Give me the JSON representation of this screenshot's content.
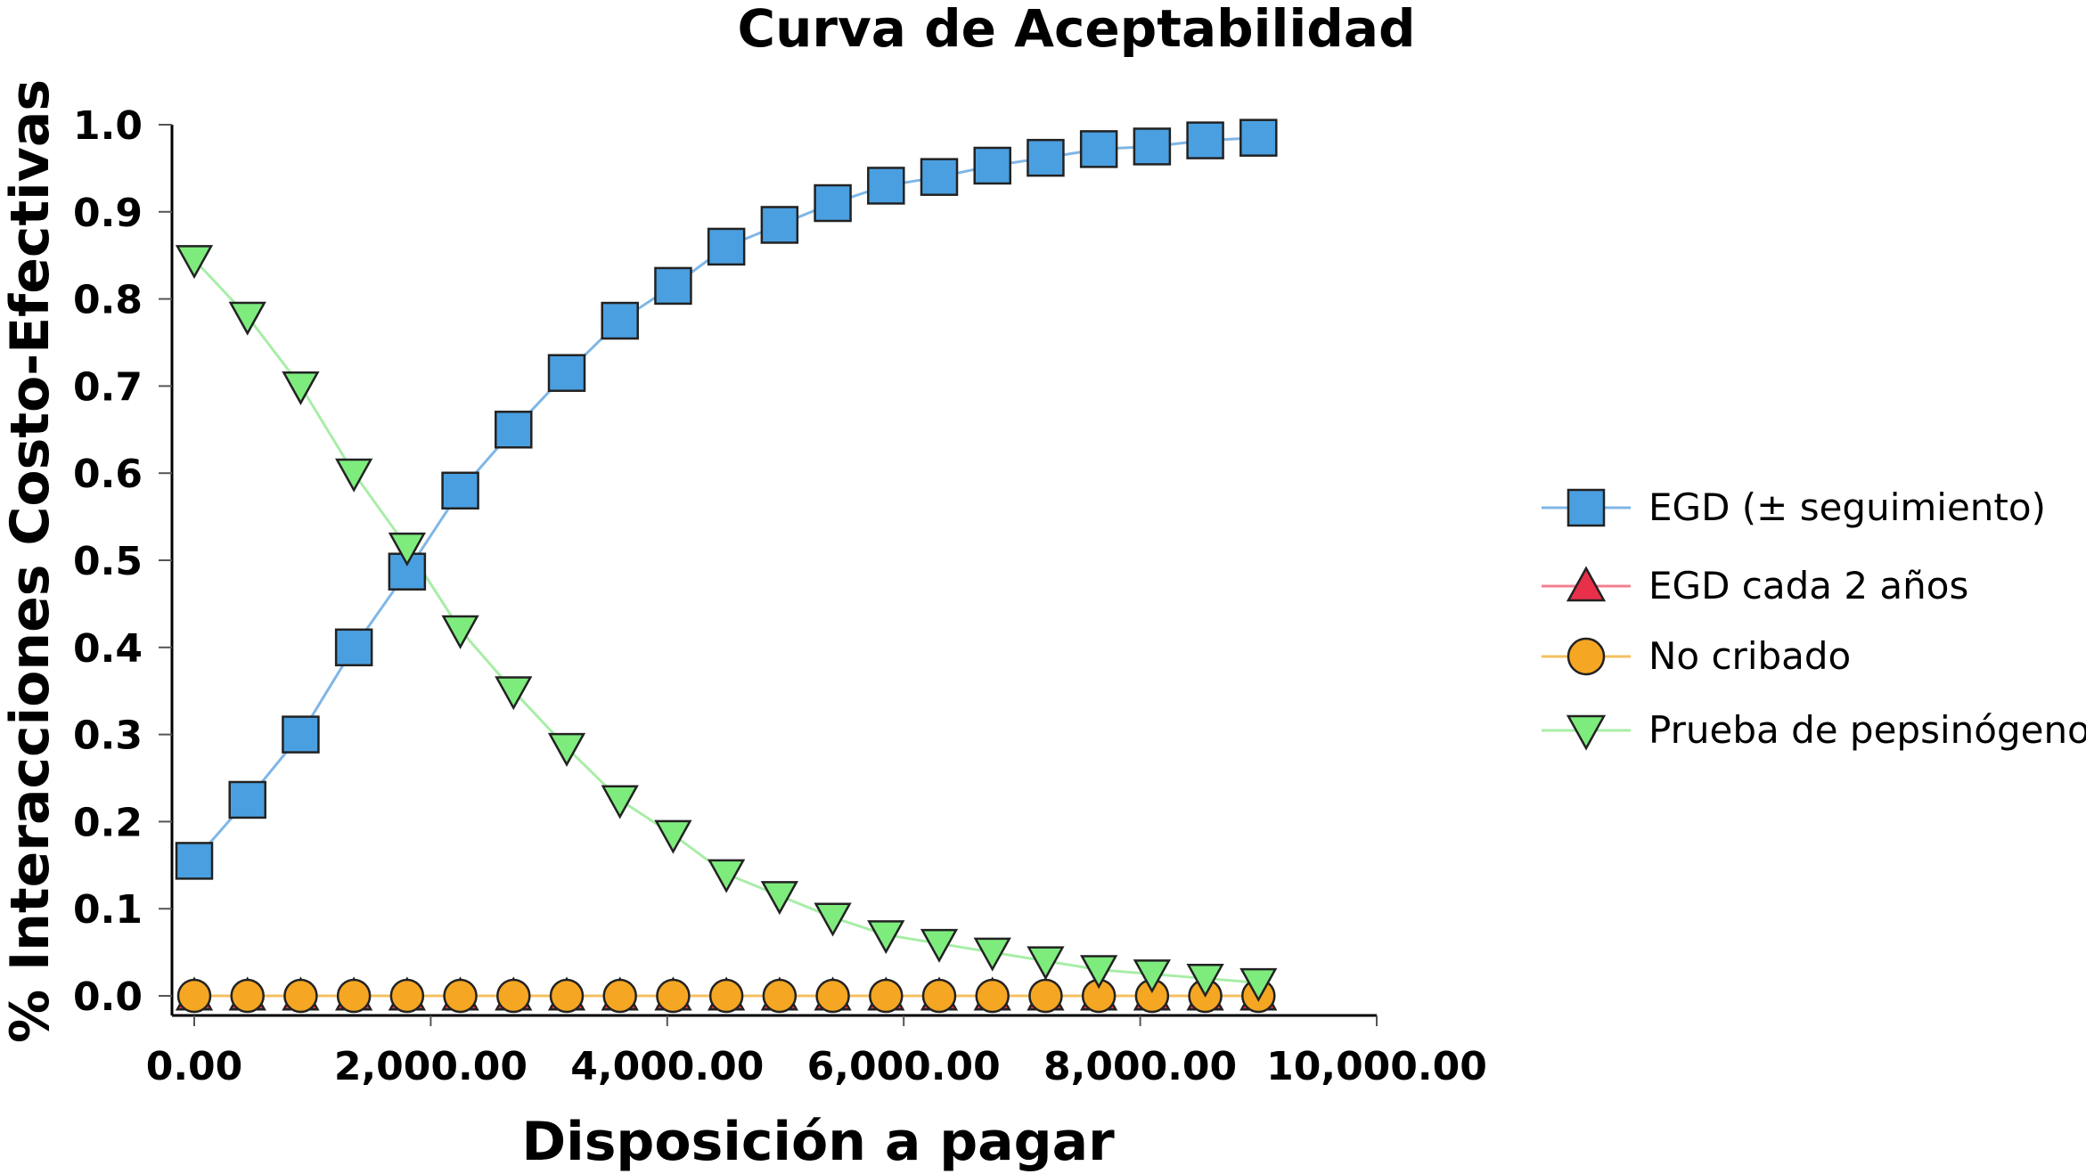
{
  "chart_data": {
    "type": "line",
    "title": "Curva de Aceptabilidad",
    "xlabel": "Disposición a pagar",
    "ylabel": "% Interacciones Costo-Efectivas",
    "xlim": [
      0,
      10000
    ],
    "ylim": [
      0,
      1.0
    ],
    "x_ticks": [
      0,
      2000,
      4000,
      6000,
      8000,
      10000
    ],
    "x_tick_labels": [
      "0.00",
      "2,000.00",
      "4,000.00",
      "6,000.00",
      "8,000.00",
      "10,000.00"
    ],
    "y_ticks": [
      0,
      0.1,
      0.2,
      0.3,
      0.4,
      0.5,
      0.6,
      0.7,
      0.8,
      0.9,
      1.0
    ],
    "y_tick_labels": [
      "0.0",
      "0.1",
      "0.2",
      "0.3",
      "0.4",
      "0.5",
      "0.6",
      "0.7",
      "0.8",
      "0.9",
      "1.0"
    ],
    "grid": false,
    "legend_position": "right",
    "x": [
      0,
      450,
      900,
      1350,
      1800,
      2250,
      2700,
      3150,
      3600,
      4050,
      4500,
      4950,
      5400,
      5850,
      6300,
      6750,
      7200,
      7650,
      8100,
      8550,
      9000
    ],
    "series": [
      {
        "name": "EGD (± seguimiento)",
        "marker": "square",
        "color": "#4a9fe0",
        "line_color": "#7fb6e6",
        "values": [
          0.155,
          0.225,
          0.3,
          0.4,
          0.487,
          0.58,
          0.65,
          0.715,
          0.775,
          0.815,
          0.86,
          0.885,
          0.91,
          0.93,
          0.94,
          0.953,
          0.962,
          0.972,
          0.975,
          0.982,
          0.985
        ]
      },
      {
        "name": "EGD cada 2 años",
        "marker": "triangle-up",
        "color": "#e8304a",
        "line_color": "#f08090",
        "values": [
          0,
          0,
          0,
          0,
          0,
          0,
          0,
          0,
          0,
          0,
          0,
          0,
          0,
          0,
          0,
          0,
          0,
          0,
          0,
          0,
          0
        ]
      },
      {
        "name": "No cribado",
        "marker": "circle",
        "color": "#f5a623",
        "line_color": "#f5c060",
        "values": [
          0,
          0,
          0,
          0,
          0,
          0,
          0,
          0,
          0,
          0,
          0,
          0,
          0,
          0,
          0,
          0,
          0,
          0,
          0,
          0,
          0
        ]
      },
      {
        "name": "Prueba de pepsinógeno",
        "marker": "triangle-down",
        "color": "#7dec7d",
        "line_color": "#a8eda8",
        "values": [
          0.845,
          0.78,
          0.7,
          0.6,
          0.515,
          0.42,
          0.35,
          0.285,
          0.225,
          0.185,
          0.14,
          0.115,
          0.09,
          0.07,
          0.06,
          0.05,
          0.04,
          0.03,
          0.025,
          0.02,
          0.015
        ]
      }
    ]
  }
}
